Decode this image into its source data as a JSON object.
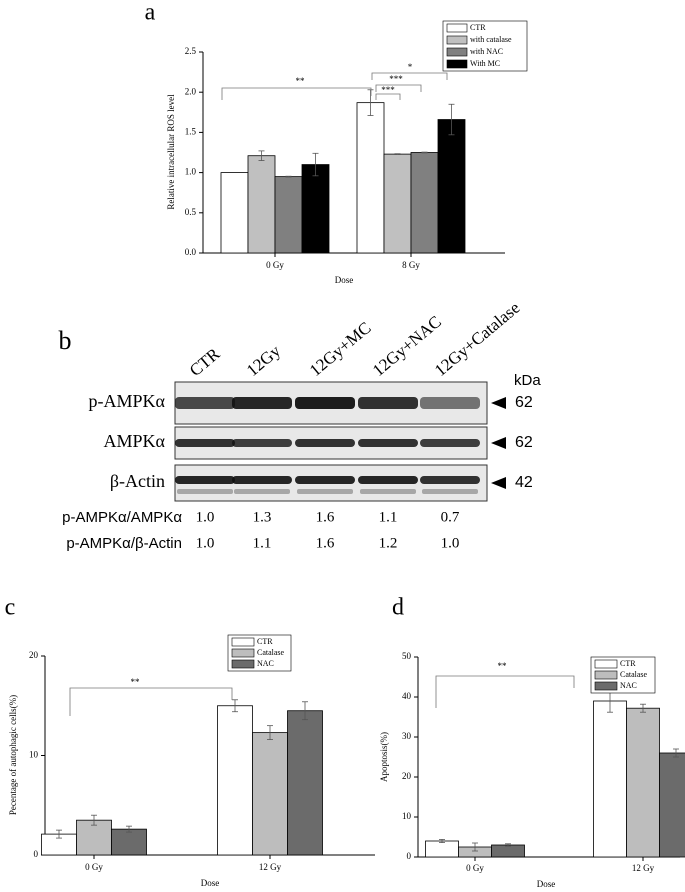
{
  "chart_data": [
    {
      "type": "bar",
      "panel_label": "a",
      "y_label": "Relative intracellular ROS level",
      "x_label": "Dose",
      "categories": [
        "0 Gy",
        "8 Gy"
      ],
      "series": [
        {
          "name": "CTR",
          "color": "#ffffff",
          "values": [
            1.0,
            1.87
          ],
          "errors": [
            0,
            0.16
          ]
        },
        {
          "name": "with catalase",
          "color": "#c0c0c0",
          "values": [
            1.21,
            1.23
          ],
          "errors": [
            0.06,
            0.005
          ]
        },
        {
          "name": "with NAC",
          "color": "#808080",
          "values": [
            0.95,
            1.25
          ],
          "errors": [
            0.005,
            0.005
          ]
        },
        {
          "name": "With MC",
          "color": "#000000",
          "values": [
            1.1,
            1.66
          ],
          "errors": [
            0.14,
            0.19
          ]
        }
      ],
      "ylim": [
        0,
        2.5
      ],
      "yticks": [
        {
          "value": 0,
          "label": "0.0"
        },
        0.5,
        {
          "value": 1,
          "label": "1.0"
        },
        1.5,
        {
          "value": 2,
          "label": "2.0"
        },
        2.5
      ],
      "annotations": [
        "**",
        "*",
        "***",
        "***"
      ]
    },
    {
      "type": "bar",
      "panel_label": "c",
      "y_label": "Pecentage of autophagic cells(%)",
      "x_label": "Dose",
      "categories": [
        "0 Gy",
        "12 Gy"
      ],
      "series": [
        {
          "name": "CTR",
          "color": "#ffffff",
          "values": [
            2.1,
            15.0
          ],
          "errors": [
            0.4,
            0.6
          ]
        },
        {
          "name": "Catalase",
          "color": "#bdbdbd",
          "values": [
            3.5,
            12.3
          ],
          "errors": [
            0.5,
            0.7
          ]
        },
        {
          "name": "NAC",
          "color": "#6b6b6b",
          "values": [
            2.6,
            14.5
          ],
          "errors": [
            0.3,
            0.9
          ]
        }
      ],
      "ylim": [
        0,
        20
      ],
      "yticks": [
        0,
        10,
        20
      ],
      "annotations": [
        "**"
      ]
    },
    {
      "type": "bar",
      "panel_label": "d",
      "y_label": "Apoptosis(%)",
      "x_label": "Dose",
      "categories": [
        "0 Gy",
        "12 Gy"
      ],
      "series": [
        {
          "name": "CTR",
          "color": "#ffffff",
          "values": [
            4.0,
            39.0
          ],
          "errors": [
            0.4,
            2.8
          ]
        },
        {
          "name": "Catalase",
          "color": "#bdbdbd",
          "values": [
            2.5,
            37.2
          ],
          "errors": [
            1.0,
            1.0
          ]
        },
        {
          "name": "NAC",
          "color": "#6b6b6b",
          "values": [
            3.0,
            26.0
          ],
          "errors": [
            0.3,
            1.0
          ]
        }
      ],
      "ylim": [
        0,
        50
      ],
      "yticks": [
        0,
        10,
        20,
        30,
        40,
        50
      ],
      "annotations": [
        "**"
      ]
    }
  ],
  "blot": {
    "panel_label": "b",
    "unit": "kDa",
    "lanes": [
      "CTR",
      "12Gy",
      "12Gy+MC",
      "12Gy+NAC",
      "12Gy+Catalase"
    ],
    "rows": [
      {
        "label": "p-AMPKα",
        "size": "62"
      },
      {
        "label": "AMPKα",
        "size": "62"
      },
      {
        "label": "β-Actin",
        "size": "42"
      }
    ],
    "ratios": [
      {
        "label": "p-AMPKα/AMPKα",
        "values": [
          "1.0",
          "1.3",
          "1.6",
          "1.1",
          "0.7"
        ]
      },
      {
        "label": "p-AMPKα/β-Actin",
        "values": [
          "1.0",
          "1.1",
          "1.6",
          "1.2",
          "1.0"
        ]
      }
    ]
  }
}
